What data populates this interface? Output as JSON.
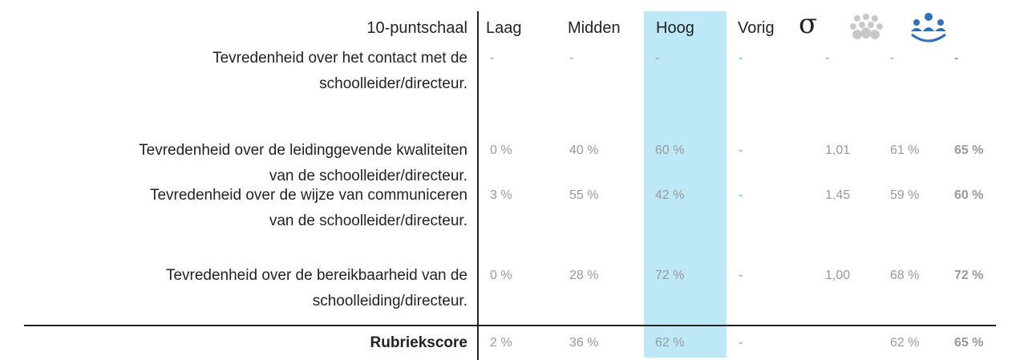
{
  "header": {
    "scale": "10-puntschaal",
    "columns": [
      "Laag",
      "Midden",
      "Hoog",
      "Vorig",
      "σ"
    ]
  },
  "rows": [
    {
      "label": [
        "Tevredenheid  over het contact met de",
        "schoolleider/directeur."
      ],
      "cells": [
        "-",
        "-",
        "-",
        "-",
        "-",
        "-",
        "-"
      ]
    },
    {
      "label": [
        "Tevredenheid  over de leidinggevende kwaliteiten",
        "van de schoolleider/directeur."
      ],
      "cells": [
        "0 %",
        "40 %",
        "60 %",
        "-",
        "1,01",
        "61 %",
        "65 %"
      ]
    },
    {
      "label": [
        "Tevredenheid over de wijze van communiceren",
        "van de schoolleider/directeur."
      ],
      "cells": [
        "3 %",
        "55 %",
        "42 %",
        "-",
        "1,45",
        "59 %",
        "60 %"
      ]
    },
    {
      "label": [
        "Tevredenheid over de bereikbaarheid van de",
        "schoolleiding/directeur."
      ],
      "cells": [
        "0 %",
        "28 %",
        "72 %",
        "-",
        "1,00",
        "68 %",
        "72 %"
      ]
    }
  ],
  "footer": {
    "label": "Rubriekscore",
    "cells": [
      "2 %",
      "36 %",
      "62 %",
      "-",
      null,
      "62 %",
      "65 %"
    ]
  }
}
